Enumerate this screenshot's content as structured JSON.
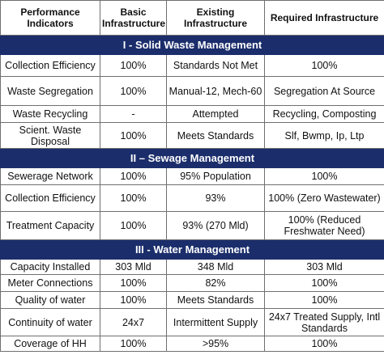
{
  "colors": {
    "section_bg": "#1b2e6b",
    "section_text": "#ffffff",
    "border": "#6f6f6f"
  },
  "headers": {
    "indicators": "Performance Indicators",
    "basic": "Basic Infrastructure",
    "existing": "Existing Infrastructure",
    "required": "Required Infrastructure"
  },
  "sections": [
    {
      "title": "I - Solid Waste Management",
      "rows": [
        {
          "indicator": "Collection Efficiency",
          "basic": "100%",
          "existing": "Standards Not Met",
          "required": "100%"
        },
        {
          "indicator": "Waste Segregation",
          "basic": "100%",
          "existing": "Manual-12, Mech-60",
          "required": "Segregation At Source"
        },
        {
          "indicator": "Waste Recycling",
          "basic": "-",
          "existing": "Attempted",
          "required": "Recycling, Composting"
        },
        {
          "indicator": "Scient. Waste Disposal",
          "basic": "100%",
          "existing": "Meets Standards",
          "required": "Slf, Bwmp, Ip, Ltp"
        }
      ]
    },
    {
      "title": "II – Sewage Management",
      "rows": [
        {
          "indicator": "Sewerage Network",
          "basic": "100%",
          "existing": "95% Population",
          "required": "100%"
        },
        {
          "indicator": "Collection Efficiency",
          "basic": "100%",
          "existing": "93%",
          "required": "100% (Zero Wastewater)"
        },
        {
          "indicator": "Treatment Capacity",
          "basic": "100%",
          "existing": "93% (270 Mld)",
          "required": "100% (Reduced Freshwater Need)"
        }
      ]
    },
    {
      "title": "III - Water Management",
      "rows": [
        {
          "indicator": "Capacity Installed",
          "basic": "303 Mld",
          "existing": "348 Mld",
          "required": "303 Mld"
        },
        {
          "indicator": "Meter Connections",
          "basic": "100%",
          "existing": "82%",
          "required": "100%"
        },
        {
          "indicator": "Quality of  water",
          "basic": "100%",
          "existing": "Meets Standards",
          "required": "100%"
        },
        {
          "indicator": "Continuity of water",
          "basic": "24x7",
          "existing": "Intermittent Supply",
          "required": "24x7 Treated Supply, Intl Standards"
        },
        {
          "indicator": "Coverage of HH",
          "basic": "100%",
          "existing": ">95%",
          "required": "100%"
        }
      ]
    }
  ]
}
